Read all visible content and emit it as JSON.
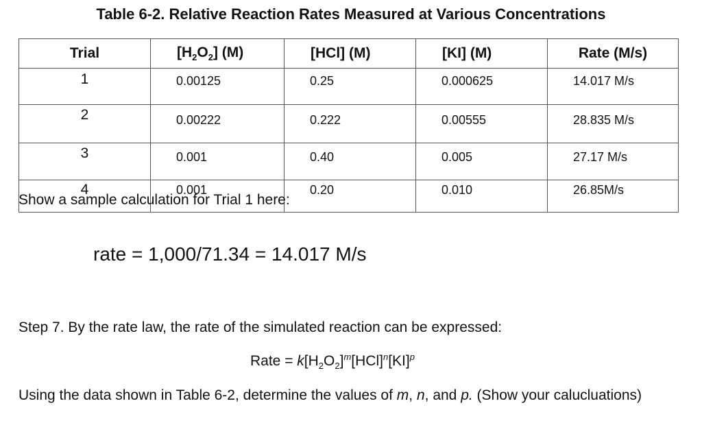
{
  "title": "Table 6-2. Relative Reaction Rates Measured at Various Concentrations",
  "table": {
    "headers": {
      "trial": "Trial",
      "h2o2_pre": "[H",
      "h2o2_sub1": "2",
      "h2o2_mid": "O",
      "h2o2_sub2": "2",
      "h2o2_post": "]  (M)",
      "hcl": "[HCl]  (M)",
      "ki": "[KI]  (M)",
      "rate": "Rate  (M/s)"
    },
    "rows": [
      {
        "trial": "1",
        "h2o2": "0.00125",
        "hcl": "0.25",
        "ki": "0.000625",
        "rate": "14.017 M/s"
      },
      {
        "trial": "2",
        "h2o2": "0.00222",
        "hcl": "0.222",
        "ki": "0.00555",
        "rate": "28.835 M/s"
      },
      {
        "trial": "3",
        "h2o2": "0.001",
        "hcl": "0.40",
        "ki": "0.005",
        "rate": "27.17 M/s"
      },
      {
        "trial": "4",
        "h2o2": "0.001",
        "hcl": "0.20",
        "ki": "0.010",
        "rate": "26.85M/s"
      }
    ]
  },
  "sample_prompt": "Show a sample calculation for Trial 1 here:",
  "sample_calc": "rate = 1,000/71.34 = 14.017 M/s",
  "step7": "Step 7. By the rate law, the rate of the simulated reaction can be expressed:",
  "rate_law": {
    "lhs": "Rate = ",
    "k": "k",
    "t1": "[H",
    "s1": "2",
    "t2": "O",
    "s2": "2",
    "t3": "]",
    "m": "m",
    "t4": "[HCl]",
    "n": "n",
    "t5": "[KI]",
    "p": "p"
  },
  "question": {
    "text1": "Using the data shown in Table 6-2, determine the values of ",
    "m": "m",
    "sep1": ", ",
    "n": "n",
    "sep2": ", and ",
    "p": "p.",
    "text2": " (Show your calucluations)"
  }
}
